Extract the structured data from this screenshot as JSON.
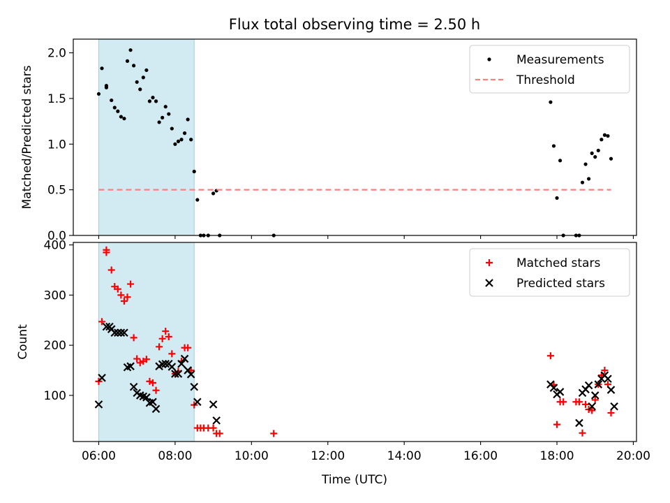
{
  "chart_data": {
    "type": "scatter",
    "title": "Flux total observing time = 2.50 h",
    "xlabel": "Time (UTC)",
    "x_range": [
      "05:20",
      "20:05"
    ],
    "x_ticks": [
      "06:00",
      "08:00",
      "10:00",
      "12:00",
      "14:00",
      "16:00",
      "18:00",
      "20:00"
    ],
    "highlight_span": {
      "start": "06:00",
      "end": "08:30",
      "color": "#add8e6"
    },
    "colors": {
      "measurements": "#000000",
      "threshold": "#ff7f7f",
      "matched": "#ff0000",
      "predicted": "#000000"
    },
    "panels": [
      {
        "ylabel": "Matched/Predicted stars",
        "ylim": [
          0,
          2.15
        ],
        "y_ticks": [
          "0.0",
          "0.5",
          "1.0",
          "1.5",
          "2.0"
        ],
        "legend": "top-right",
        "series": [
          {
            "name": "Measurements",
            "kind": "points",
            "points": [
              [
                "06:00",
                1.55
              ],
              [
                "06:05",
                1.83
              ],
              [
                "06:12",
                1.64
              ],
              [
                "06:12",
                1.62
              ],
              [
                "06:20",
                1.48
              ],
              [
                "06:25",
                1.4
              ],
              [
                "06:30",
                1.36
              ],
              [
                "06:35",
                1.3
              ],
              [
                "06:40",
                1.28
              ],
              [
                "06:45",
                1.91
              ],
              [
                "06:50",
                2.03
              ],
              [
                "06:55",
                1.86
              ],
              [
                "07:00",
                1.68
              ],
              [
                "07:05",
                1.6
              ],
              [
                "07:10",
                1.73
              ],
              [
                "07:15",
                1.81
              ],
              [
                "07:20",
                1.47
              ],
              [
                "07:25",
                1.51
              ],
              [
                "07:30",
                1.47
              ],
              [
                "07:35",
                1.24
              ],
              [
                "07:40",
                1.29
              ],
              [
                "07:45",
                1.41
              ],
              [
                "07:50",
                1.33
              ],
              [
                "07:55",
                1.17
              ],
              [
                "08:00",
                1.0
              ],
              [
                "08:05",
                1.03
              ],
              [
                "08:10",
                1.05
              ],
              [
                "08:15",
                1.12
              ],
              [
                "08:20",
                1.27
              ],
              [
                "08:25",
                1.05
              ],
              [
                "08:30",
                0.7
              ],
              [
                "08:35",
                0.39
              ],
              [
                "08:40",
                0.0
              ],
              [
                "08:45",
                0.0
              ],
              [
                "08:52",
                0.0
              ],
              [
                "09:00",
                0.46
              ],
              [
                "09:05",
                0.49
              ],
              [
                "09:10",
                0.0
              ],
              [
                "10:35",
                0.0
              ],
              [
                "17:50",
                1.46
              ],
              [
                "17:55",
                0.98
              ],
              [
                "18:00",
                0.41
              ],
              [
                "18:05",
                0.82
              ],
              [
                "18:10",
                0.0
              ],
              [
                "18:30",
                0.0
              ],
              [
                "18:35",
                0.0
              ],
              [
                "18:40",
                0.58
              ],
              [
                "18:45",
                0.78
              ],
              [
                "18:50",
                0.62
              ],
              [
                "18:55",
                0.9
              ],
              [
                "19:00",
                0.86
              ],
              [
                "19:05",
                0.93
              ],
              [
                "19:10",
                1.05
              ],
              [
                "19:15",
                1.1
              ],
              [
                "19:20",
                1.09
              ],
              [
                "19:25",
                0.84
              ]
            ]
          },
          {
            "name": "Threshold",
            "kind": "dashed-line",
            "points": [
              [
                "06:00",
                0.5
              ],
              [
                "19:25",
                0.5
              ]
            ]
          }
        ]
      },
      {
        "ylabel": "Count",
        "ylim": [
          8,
          405
        ],
        "y_ticks": [
          "100",
          "200",
          "300",
          "400"
        ],
        "legend": "top-right",
        "series": [
          {
            "name": "Matched stars",
            "kind": "plus",
            "points": [
              [
                "06:00",
                128
              ],
              [
                "06:05",
                247
              ],
              [
                "06:12",
                390
              ],
              [
                "06:12",
                385
              ],
              [
                "06:20",
                350
              ],
              [
                "06:25",
                317
              ],
              [
                "06:30",
                312
              ],
              [
                "06:35",
                300
              ],
              [
                "06:40",
                288
              ],
              [
                "06:45",
                296
              ],
              [
                "06:50",
                322
              ],
              [
                "06:55",
                215
              ],
              [
                "07:00",
                173
              ],
              [
                "07:05",
                165
              ],
              [
                "07:10",
                168
              ],
              [
                "07:15",
                172
              ],
              [
                "07:20",
                128
              ],
              [
                "07:25",
                125
              ],
              [
                "07:30",
                110
              ],
              [
                "07:35",
                197
              ],
              [
                "07:40",
                213
              ],
              [
                "07:45",
                228
              ],
              [
                "07:50",
                217
              ],
              [
                "07:55",
                183
              ],
              [
                "08:00",
                143
              ],
              [
                "08:05",
                148
              ],
              [
                "08:10",
                168
              ],
              [
                "08:15",
                195
              ],
              [
                "08:20",
                195
              ],
              [
                "08:25",
                150
              ],
              [
                "08:30",
                81
              ],
              [
                "08:35",
                35
              ],
              [
                "08:40",
                35
              ],
              [
                "08:45",
                35
              ],
              [
                "08:52",
                35
              ],
              [
                "09:00",
                35
              ],
              [
                "09:05",
                24
              ],
              [
                "09:10",
                24
              ],
              [
                "10:35",
                24
              ],
              [
                "17:50",
                179
              ],
              [
                "17:55",
                121
              ],
              [
                "18:00",
                42
              ],
              [
                "18:05",
                87
              ],
              [
                "18:10",
                87
              ],
              [
                "18:30",
                87
              ],
              [
                "18:35",
                87
              ],
              [
                "18:40",
                25
              ],
              [
                "18:45",
                82
              ],
              [
                "18:50",
                72
              ],
              [
                "18:55",
                70
              ],
              [
                "19:00",
                91
              ],
              [
                "19:05",
                122
              ],
              [
                "19:10",
                140
              ],
              [
                "19:15",
                150
              ],
              [
                "19:20",
                122
              ],
              [
                "19:25",
                65
              ]
            ]
          },
          {
            "name": "Predicted stars",
            "kind": "cross",
            "points": [
              [
                "06:00",
                82
              ],
              [
                "06:05",
                135
              ],
              [
                "06:12",
                237
              ],
              [
                "06:17",
                237
              ],
              [
                "06:20",
                232
              ],
              [
                "06:25",
                225
              ],
              [
                "06:30",
                225
              ],
              [
                "06:35",
                225
              ],
              [
                "06:40",
                225
              ],
              [
                "06:45",
                156
              ],
              [
                "06:50",
                158
              ],
              [
                "06:55",
                117
              ],
              [
                "07:00",
                105
              ],
              [
                "07:05",
                100
              ],
              [
                "07:10",
                98
              ],
              [
                "07:15",
                96
              ],
              [
                "07:20",
                85
              ],
              [
                "07:25",
                87
              ],
              [
                "07:30",
                73
              ],
              [
                "07:35",
                158
              ],
              [
                "07:40",
                162
              ],
              [
                "07:45",
                163
              ],
              [
                "07:50",
                163
              ],
              [
                "07:55",
                157
              ],
              [
                "08:00",
                143
              ],
              [
                "08:05",
                143
              ],
              [
                "08:10",
                163
              ],
              [
                "08:15",
                173
              ],
              [
                "08:20",
                150
              ],
              [
                "08:25",
                142
              ],
              [
                "08:30",
                117
              ],
              [
                "08:35",
                87
              ],
              [
                "09:00",
                82
              ],
              [
                "09:05",
                50
              ],
              [
                "17:50",
                122
              ],
              [
                "17:55",
                115
              ],
              [
                "18:00",
                102
              ],
              [
                "18:05",
                107
              ],
              [
                "18:35",
                45
              ],
              [
                "18:40",
                105
              ],
              [
                "18:45",
                112
              ],
              [
                "18:50",
                120
              ],
              [
                "18:55",
                78
              ],
              [
                "19:00",
                100
              ],
              [
                "19:05",
                122
              ],
              [
                "19:10",
                133
              ],
              [
                "19:15",
                140
              ],
              [
                "19:20",
                133
              ],
              [
                "19:25",
                111
              ],
              [
                "19:30",
                78
              ]
            ]
          }
        ]
      }
    ]
  }
}
